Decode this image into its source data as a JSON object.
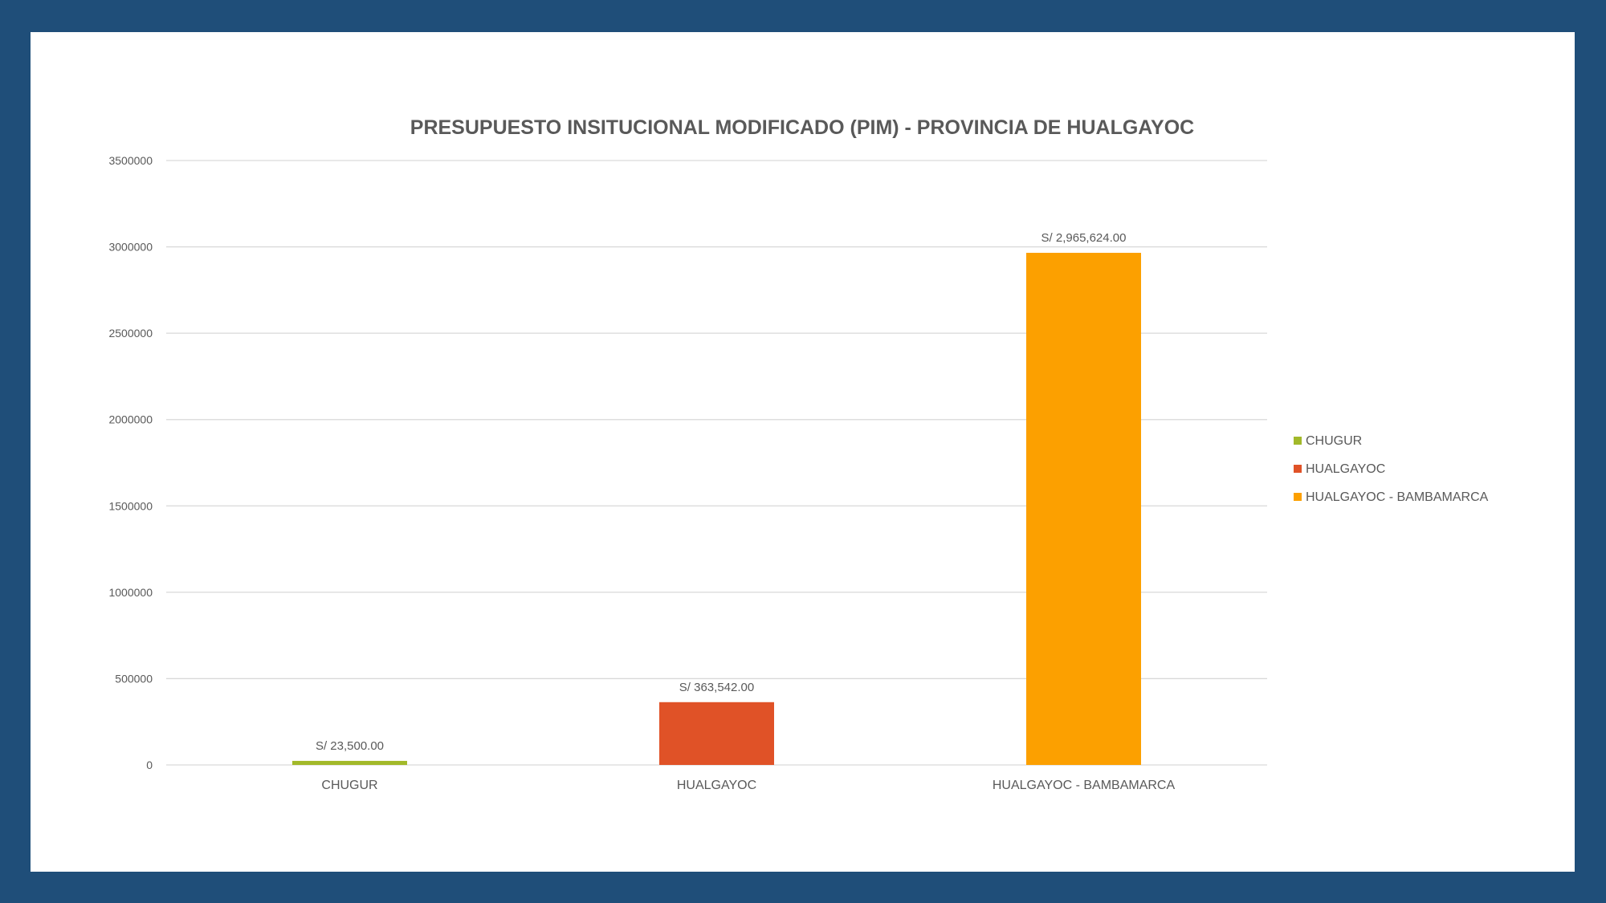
{
  "colors": {
    "background": "#1f4e79",
    "grid": "#d9d9d9"
  },
  "chart_data": {
    "type": "bar",
    "title": "PRESUPUESTO INSITUCIONAL MODIFICADO (PIM) - PROVINCIA DE HUALGAYOC",
    "xlabel": "",
    "ylabel": "",
    "categories": [
      "CHUGUR",
      "HUALGAYOC",
      "HUALGAYOC - BAMBAMARCA"
    ],
    "values": [
      23500,
      363542,
      2965624
    ],
    "data_labels": [
      "S/ 23,500.00",
      "S/ 363,542.00",
      "S/ 2,965,624.00"
    ],
    "colors": [
      "#a2b92a",
      "#e05227",
      "#fca000"
    ],
    "ylim": [
      0,
      3500000
    ],
    "yticks": [
      "0",
      "500000",
      "1000000",
      "1500000",
      "2000000",
      "2500000",
      "3000000",
      "3500000"
    ],
    "grid": true,
    "legend": {
      "placement": "right",
      "entries": [
        "CHUGUR",
        "HUALGAYOC",
        "HUALGAYOC - BAMBAMARCA"
      ]
    }
  }
}
